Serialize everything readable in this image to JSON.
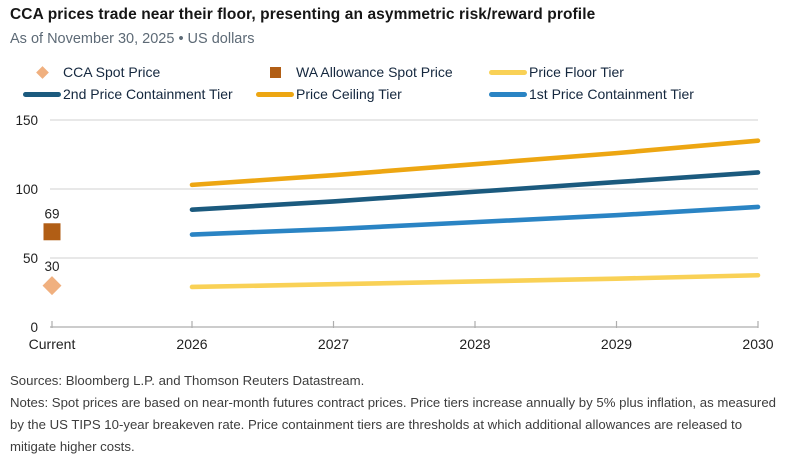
{
  "header": {
    "title": "CCA prices trade near their floor, presenting an asymmetric risk/reward profile",
    "subtitle": "As of November 30, 2025 • US dollars"
  },
  "legend": {
    "items": [
      {
        "label": "CCA Spot Price",
        "marker": "diamond",
        "color": "#F0B07F"
      },
      {
        "label": "WA Allowance Spot Price",
        "marker": "square",
        "color": "#B15E15"
      },
      {
        "label": "Price Floor Tier",
        "marker": "line",
        "color": "#F9D156"
      },
      {
        "label": "2nd Price Containment Tier",
        "marker": "line",
        "color": "#1B5A7E"
      },
      {
        "label": "Price Ceiling Tier",
        "marker": "line",
        "color": "#EDA612"
      },
      {
        "label": "1st Price Containment Tier",
        "marker": "line",
        "color": "#2A84C4"
      }
    ]
  },
  "chart_data": {
    "type": "line",
    "title": "CCA prices trade near their floor, presenting an asymmetric risk/reward profile",
    "subtitle": "As of November 30, 2025 • US dollars",
    "xlabel": "",
    "ylabel": "US dollars",
    "x_categories": [
      "Current",
      "2026",
      "2027",
      "2028",
      "2029",
      "2030"
    ],
    "ylim": [
      0,
      150
    ],
    "yticks": [
      0,
      50,
      100,
      150
    ],
    "grid": "horizontal",
    "grid_color": "#d9d9d9",
    "axis_color": "#aeaeae",
    "legend_position": "top",
    "points": [
      {
        "name": "WA Allowance Spot Price",
        "x": "Current",
        "value": 69,
        "label": "69",
        "marker": "square",
        "color": "#B15E15"
      },
      {
        "name": "CCA Spot Price",
        "x": "Current",
        "value": 30,
        "label": "30",
        "marker": "diamond",
        "color": "#F0B07F"
      }
    ],
    "series": [
      {
        "name": "Price Ceiling Tier",
        "color": "#EDA612",
        "x": [
          "2026",
          "2027",
          "2028",
          "2029",
          "2030"
        ],
        "values": [
          103,
          110,
          118,
          126,
          135
        ]
      },
      {
        "name": "2nd Price Containment Tier",
        "color": "#1B5A7E",
        "x": [
          "2026",
          "2027",
          "2028",
          "2029",
          "2030"
        ],
        "values": [
          85,
          91,
          98,
          105,
          112
        ]
      },
      {
        "name": "1st Price Containment Tier",
        "color": "#2A84C4",
        "x": [
          "2026",
          "2027",
          "2028",
          "2029",
          "2030"
        ],
        "values": [
          67,
          71,
          76,
          81,
          87
        ]
      },
      {
        "name": "Price Floor Tier",
        "color": "#F9D156",
        "x": [
          "2026",
          "2027",
          "2028",
          "2029",
          "2030"
        ],
        "values": [
          29,
          31,
          33,
          35,
          37.5
        ]
      }
    ]
  },
  "footer": {
    "sources": "Sources: Bloomberg L.P. and Thomson Reuters Datastream.",
    "notes": "Notes: Spot prices are based on near-month futures contract prices. Price tiers increase annually by 5% plus inflation, as measured by the US TIPS 10-year breakeven rate. Price containment tiers are thresholds at which additional allowances are released to mitigate higher costs."
  }
}
